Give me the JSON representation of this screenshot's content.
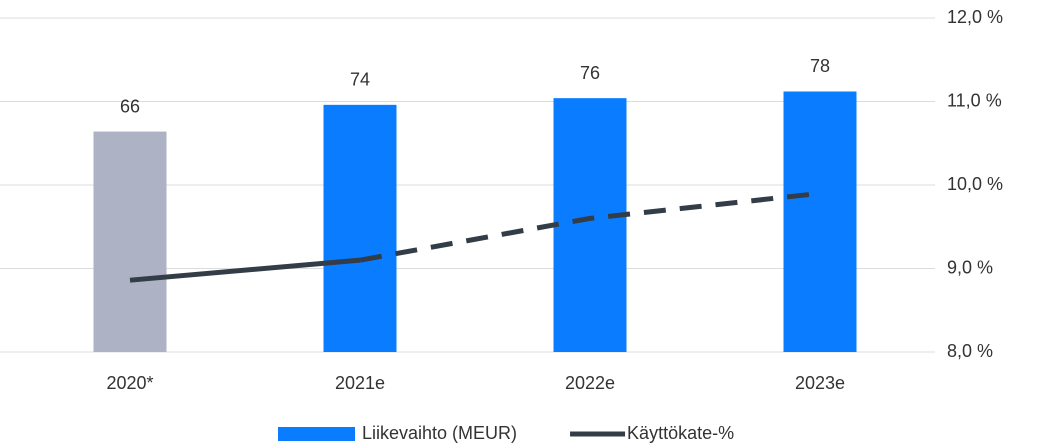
{
  "chart_data": {
    "type": "bar_line",
    "categories": [
      "2020*",
      "2021e",
      "2022e",
      "2023e"
    ],
    "ylim": [
      0,
      100
    ],
    "y2lim": [
      8,
      12
    ],
    "y2ticks": [
      {
        "value": 8,
        "label": "8,0 %"
      },
      {
        "value": 9,
        "label": "9,0 %"
      },
      {
        "value": 10,
        "label": "10,0 %"
      },
      {
        "value": 11,
        "label": "11,0 %"
      },
      {
        "value": 12,
        "label": "12,0 %"
      }
    ],
    "grid": true,
    "legend": "bottom",
    "series": [
      {
        "name": "Liikevaihto (MEUR)",
        "type": "bar",
        "color": "#0a7cff",
        "colors": [
          "#adb3c5",
          "#0a7cff",
          "#0a7cff",
          "#0a7cff"
        ],
        "values": [
          66,
          74,
          76,
          78
        ]
      },
      {
        "name": "Käyttökate-%",
        "type": "line",
        "axis": "y2",
        "color": "#333d47",
        "dashed_from_index": 1,
        "values": [
          8.86,
          9.1,
          9.6,
          9.9
        ]
      }
    ]
  }
}
